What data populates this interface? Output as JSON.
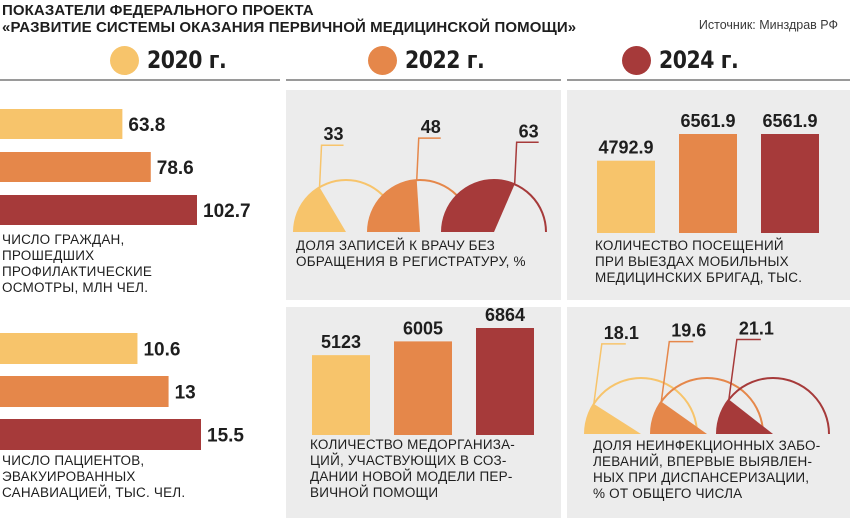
{
  "header": {
    "title_line1": "ПОКАЗАТЕЛИ ФЕДЕРАЛЬНОГО ПРОЕКТА",
    "title_line2": "«РАЗВИТИЕ СИСТЕМЫ ОКАЗАНИЯ ПЕРВИЧНОЙ МЕДИЦИНСКОЙ ПОМОЩИ»",
    "source": "Источник: Минздрав РФ"
  },
  "legend": [
    {
      "label": "2020 г.",
      "color": "#f7c46b"
    },
    {
      "label": "2022 г.",
      "color": "#e5874a"
    },
    {
      "label": "2024 г.",
      "color": "#a63a3a"
    }
  ],
  "colors": {
    "c2020": "#f7c46b",
    "c2022": "#e5874a",
    "c2024": "#a63a3a",
    "panel": "#ececec",
    "line": "#9a9a9a"
  },
  "chart_data": [
    {
      "type": "bar",
      "orientation": "horizontal",
      "caption": "ЧИСЛО ГРАЖДАН,\nПРОШЕДШИХ\nПРОФИЛАКТИЧЕСКИЕ\nОСМОТРЫ, МЛН ЧЕЛ.",
      "categories": [
        "2020 г.",
        "2022 г.",
        "2024 г."
      ],
      "values": [
        63.8,
        78.6,
        102.7
      ],
      "labels": [
        "63.8",
        "78.6",
        "102.7"
      ]
    },
    {
      "type": "pie",
      "variant": "semicircle-gauge",
      "caption": "ДОЛЯ ЗАПИСЕЙ К ВРАЧУ БЕЗ\nОБРАЩЕНИЯ В РЕГИСТРАТУРУ, %",
      "categories": [
        "2020 г.",
        "2022 г.",
        "2024 г."
      ],
      "values": [
        33,
        48,
        63
      ],
      "labels": [
        "33",
        "48",
        "63"
      ],
      "max": 100
    },
    {
      "type": "bar",
      "orientation": "vertical",
      "caption": "КОЛИЧЕСТВО ПОСЕЩЕНИЙ\nПРИ ВЫЕЗДАХ МОБИЛЬНЫХ\nМЕДИЦИНСКИХ БРИГАД, ТЫС.",
      "categories": [
        "2020 г.",
        "2022 г.",
        "2024 г."
      ],
      "values": [
        4792.9,
        6561.9,
        6561.9
      ],
      "labels": [
        "4792.9",
        "6561.9",
        "6561.9"
      ]
    },
    {
      "type": "bar",
      "orientation": "horizontal",
      "caption": "ЧИСЛО ПАЦИЕНТОВ,\nЭВАКУИРОВАННЫХ\nСАНАВИАЦИЕЙ, ТЫС. ЧЕЛ.",
      "categories": [
        "2020 г.",
        "2022 г.",
        "2024 г."
      ],
      "values": [
        10.6,
        13,
        15.5
      ],
      "labels": [
        "10.6",
        "13",
        "15.5"
      ]
    },
    {
      "type": "bar",
      "orientation": "vertical",
      "caption": "КОЛИЧЕСТВО МЕДОРГАНИЗА-\nЦИЙ, УЧАСТВУЮЩИХ В СОЗ-\nДАНИИ НОВОЙ МОДЕЛИ ПЕР-\nВИЧНОЙ ПОМОЩИ",
      "categories": [
        "2020 г.",
        "2022 г.",
        "2024 г."
      ],
      "values": [
        5123,
        6005,
        6864
      ],
      "labels": [
        "5123",
        "6005",
        "6864"
      ]
    },
    {
      "type": "pie",
      "variant": "semicircle-gauge",
      "caption": "ДОЛЯ НЕИНФЕКЦИОННЫХ ЗАБО-\nЛЕВАНИЙ, ВПЕРВЫЕ ВЫЯВЛЕН-\nНЫХ ПРИ ДИСПАНСЕРИЗАЦИИ,\n% ОТ ОБЩЕГО ЧИСЛА",
      "categories": [
        "2020 г.",
        "2022 г.",
        "2024 г."
      ],
      "values": [
        18.1,
        19.6,
        21.1
      ],
      "labels": [
        "18.1",
        "19.6",
        "21.1"
      ],
      "max": 100
    }
  ]
}
